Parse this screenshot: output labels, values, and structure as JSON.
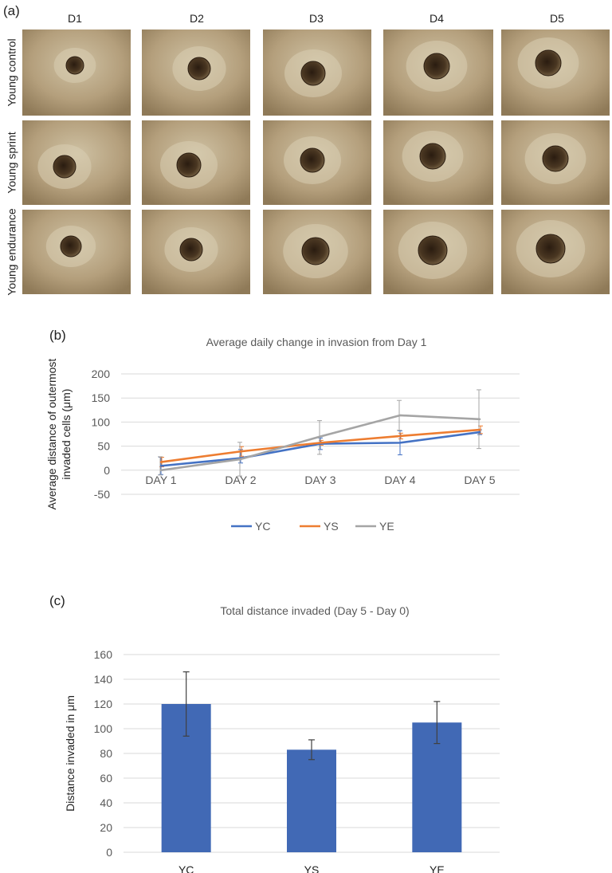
{
  "panel_a": {
    "label": "(a)",
    "columns": [
      "D1",
      "D2",
      "D3",
      "D4",
      "D5"
    ],
    "rows": [
      "Young control",
      "Young sprint",
      "Young endurance"
    ]
  },
  "panel_b": {
    "label": "(b)"
  },
  "panel_c": {
    "label": "(c)"
  },
  "colors": {
    "YC": "#4472c4",
    "YS": "#ed7d31",
    "YE": "#a5a5a5",
    "bar": "#4169b5",
    "photo_bg": "#b8a585",
    "spheroid": "#3a2a1a"
  },
  "chart_data": [
    {
      "type": "line",
      "title": "Average daily change in invasion from Day 1",
      "ylabel": "Average distance of outermost invaded cells (μm)",
      "xlabel": "",
      "categories": [
        "DAY 1",
        "DAY 2",
        "DAY 3",
        "DAY 4",
        "DAY 5"
      ],
      "ylim": [
        -50,
        200
      ],
      "yticks": [
        -50,
        0,
        50,
        100,
        150,
        200
      ],
      "legend_position": "bottom",
      "series": [
        {
          "name": "YC",
          "values": [
            9,
            25,
            55,
            57,
            79
          ],
          "err_hi": [
            18,
            18,
            12,
            25,
            5
          ],
          "err_lo": [
            18,
            10,
            12,
            25,
            5
          ]
        },
        {
          "name": "YS",
          "values": [
            17,
            39,
            57,
            71,
            84
          ],
          "err_hi": [
            10,
            10,
            5,
            6,
            8
          ],
          "err_lo": [
            10,
            10,
            5,
            6,
            8
          ]
        },
        {
          "name": "YE",
          "values": [
            0,
            23,
            70,
            114,
            106
          ],
          "err_hi": [
            28,
            35,
            33,
            31,
            61
          ],
          "err_lo": [
            10,
            35,
            37,
            31,
            61
          ]
        }
      ]
    },
    {
      "type": "bar",
      "title": "Total distance invaded (Day 5 - Day 0)",
      "ylabel": "Distance invaded in μm",
      "xlabel": "",
      "categories": [
        "YC",
        "YS",
        "YE"
      ],
      "values": [
        120,
        83,
        105
      ],
      "errors": [
        26,
        8,
        17
      ],
      "ylim": [
        0,
        160
      ],
      "yticks": [
        0,
        20,
        40,
        60,
        80,
        100,
        120,
        140,
        160
      ]
    }
  ]
}
